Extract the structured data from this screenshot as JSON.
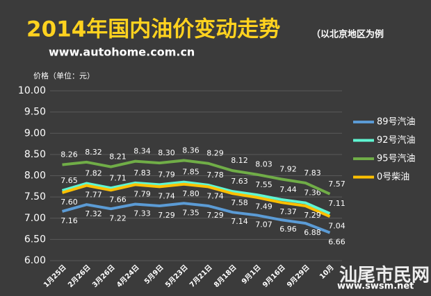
{
  "chart_data": {
    "type": "line",
    "title": "2014年国内油价变动走势",
    "subtitle": "（以北京地区为例",
    "source": "www.autohome.com.cn",
    "y_label": "价格（单位：元）",
    "watermark": "汕尾市民网",
    "watermark_url": "www.swsm.net",
    "categories": [
      "1月25日",
      "2月26日",
      "3月26日",
      "4月24日",
      "5月9日",
      "5月23日",
      "7月21日",
      "8月18日",
      "9月1日",
      "9月16日",
      "9月29日",
      "10月"
    ],
    "ylim": [
      6,
      10
    ],
    "yticks": [
      {
        "value": 6,
        "label": "6.00"
      },
      {
        "value": 6.5,
        "label": "6.50"
      },
      {
        "value": 7,
        "label": "7.00"
      },
      {
        "value": 7.5,
        "label": "7.50"
      },
      {
        "value": 8,
        "label": "8.00"
      },
      {
        "value": 8.5,
        "label": "8.50"
      },
      {
        "value": 9,
        "label": "9.00"
      },
      {
        "value": 9.5,
        "label": "9.50"
      },
      {
        "value": 10,
        "label": "10.00"
      }
    ],
    "grid": true,
    "series": [
      {
        "name": "89号汽油",
        "color": "#5b9bd5",
        "label_pos": "below",
        "values": [
          7.16,
          7.32,
          7.22,
          7.33,
          7.29,
          7.35,
          7.29,
          7.14,
          7.07,
          6.96,
          6.88,
          6.66
        ],
        "value_labels": [
          "7.16",
          "7.32",
          "7.22",
          "7.33",
          "7.29",
          "7.35",
          "7.29",
          "7.14",
          "7.07",
          "6.96",
          "6.88",
          "6.66"
        ]
      },
      {
        "name": "92号汽油",
        "color": "#5ff5d2",
        "label_pos": "above",
        "values": [
          7.65,
          7.82,
          7.71,
          7.83,
          7.79,
          7.85,
          7.78,
          7.63,
          7.55,
          7.44,
          7.36,
          7.11
        ],
        "value_labels": [
          "7.65",
          "7.82",
          "7.71",
          "7.83",
          "7.79",
          "7.85",
          "7.78",
          "7.63",
          "7.55",
          "7.44",
          "7.36",
          "7.11"
        ]
      },
      {
        "name": "95号汽油",
        "color": "#70ad47",
        "label_pos": "above",
        "values": [
          8.26,
          8.32,
          8.21,
          8.34,
          8.3,
          8.36,
          8.29,
          8.12,
          8.03,
          7.92,
          7.83,
          7.57
        ],
        "value_labels": [
          "8.26",
          "8.32",
          "8.21",
          "8.34",
          "8.30",
          "8.36",
          "8.29",
          "8.12",
          "8.03",
          "7.92",
          "7.83",
          "7.57"
        ]
      },
      {
        "name": "0号柴油",
        "color": "#ffc000",
        "label_pos": "below",
        "values": [
          7.6,
          7.77,
          7.66,
          7.79,
          7.74,
          7.8,
          7.74,
          7.58,
          7.49,
          7.37,
          7.29,
          7.04
        ],
        "value_labels": [
          "7.60",
          "7.77",
          "7.66",
          "7.79",
          "7.74",
          "7.80",
          "7.74",
          "7.58",
          "7.49",
          "7.37",
          "7.29",
          "7.04"
        ]
      }
    ]
  }
}
